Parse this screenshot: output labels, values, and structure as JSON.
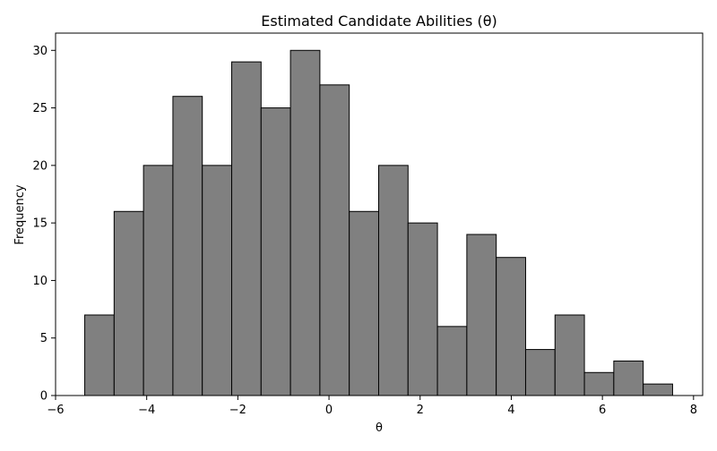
{
  "chart_data": {
    "type": "bar",
    "title": "Estimated Candidate Abilities (θ)",
    "xlabel": "θ",
    "ylabel": "Frequency",
    "xlim": [
      -6,
      8.2
    ],
    "ylim": [
      0,
      31.5
    ],
    "x_ticks": [
      -6,
      -4,
      -2,
      0,
      2,
      4,
      6,
      8
    ],
    "x_tick_labels": [
      "−6",
      "−4",
      "−2",
      "0",
      "2",
      "4",
      "6",
      "8"
    ],
    "y_ticks": [
      0,
      5,
      10,
      15,
      20,
      25,
      30
    ],
    "y_tick_labels": [
      "0",
      "5",
      "10",
      "15",
      "20",
      "25",
      "30"
    ],
    "grid": false,
    "bar_color": "#808080",
    "edge_color": "#000000",
    "bin_edges": [
      -5.36,
      -4.715,
      -4.07,
      -3.425,
      -2.78,
      -2.135,
      -1.49,
      -0.845,
      -0.2,
      0.445,
      1.09,
      1.735,
      2.38,
      3.025,
      3.67,
      4.315,
      4.96,
      5.605,
      6.25,
      6.895,
      7.54
    ],
    "values": [
      7,
      16,
      20,
      26,
      20,
      29,
      25,
      30,
      27,
      16,
      20,
      15,
      6,
      14,
      12,
      4,
      7,
      2,
      3,
      1
    ]
  }
}
